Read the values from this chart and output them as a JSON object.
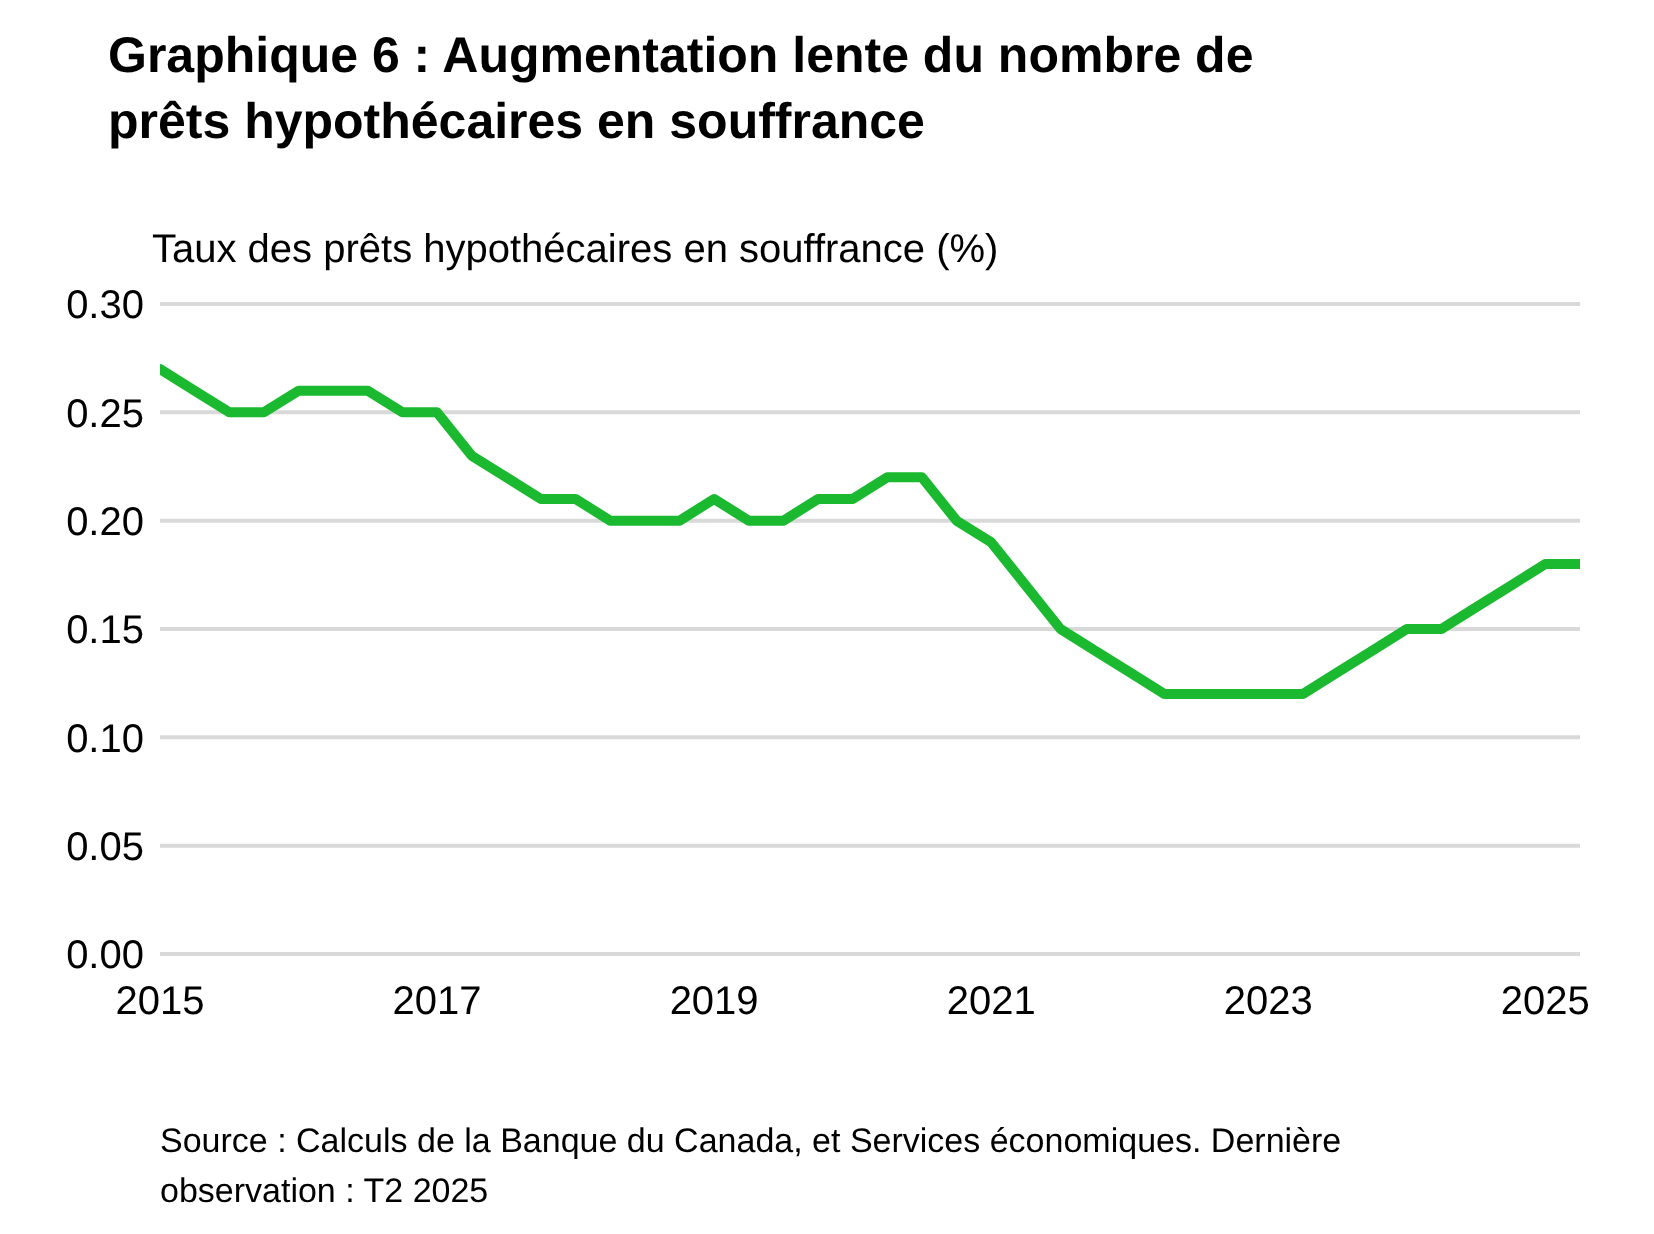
{
  "chart_data": {
    "type": "line",
    "title": "Graphique 6 : Augmentation lente du nombre de prêts hypothécaires en souffrance",
    "ylabel": "Taux des prêts hypothécaires en souffrance (%)",
    "x": [
      2015,
      2015.25,
      2015.5,
      2015.75,
      2016,
      2016.25,
      2016.5,
      2016.75,
      2017,
      2017.25,
      2017.5,
      2017.75,
      2018,
      2018.25,
      2018.5,
      2018.75,
      2019,
      2019.25,
      2019.5,
      2019.75,
      2020,
      2020.25,
      2020.5,
      2020.75,
      2021,
      2021.25,
      2021.5,
      2021.75,
      2022,
      2022.25,
      2022.5,
      2022.75,
      2023,
      2023.25,
      2023.5,
      2023.75,
      2024,
      2024.25,
      2024.5,
      2024.75,
      2025,
      2025.25
    ],
    "series": [
      {
        "color": "#1ab92f",
        "values": [
          0.27,
          0.26,
          0.25,
          0.25,
          0.26,
          0.26,
          0.26,
          0.25,
          0.25,
          0.23,
          0.22,
          0.21,
          0.21,
          0.2,
          0.2,
          0.2,
          0.21,
          0.2,
          0.2,
          0.21,
          0.21,
          0.22,
          0.22,
          0.2,
          0.19,
          0.17,
          0.15,
          0.14,
          0.13,
          0.12,
          0.12,
          0.12,
          0.12,
          0.12,
          0.13,
          0.14,
          0.15,
          0.15,
          0.16,
          0.17,
          0.18,
          0.18
        ]
      }
    ],
    "xlim": [
      2015,
      2025.25
    ],
    "xticks": [
      2015,
      2017,
      2019,
      2021,
      2023,
      2025
    ],
    "ylim": [
      0,
      0.3
    ],
    "yticks": [
      {
        "value": 0,
        "label": "0.00"
      },
      {
        "value": 0.05,
        "label": "0.05"
      },
      {
        "value": 0.1,
        "label": "0.10"
      },
      {
        "value": 0.15,
        "label": "0.15"
      },
      {
        "value": 0.2,
        "label": "0.20"
      },
      {
        "value": 0.25,
        "label": "0.25"
      },
      {
        "value": 0.3,
        "label": "0.30"
      }
    ],
    "grid": "y",
    "marker": "none",
    "line_style": "solid",
    "annotations": [
      "Source : Calculs de la Banque du Canada, et Services économiques. Dernière observation : T2 2025"
    ]
  }
}
